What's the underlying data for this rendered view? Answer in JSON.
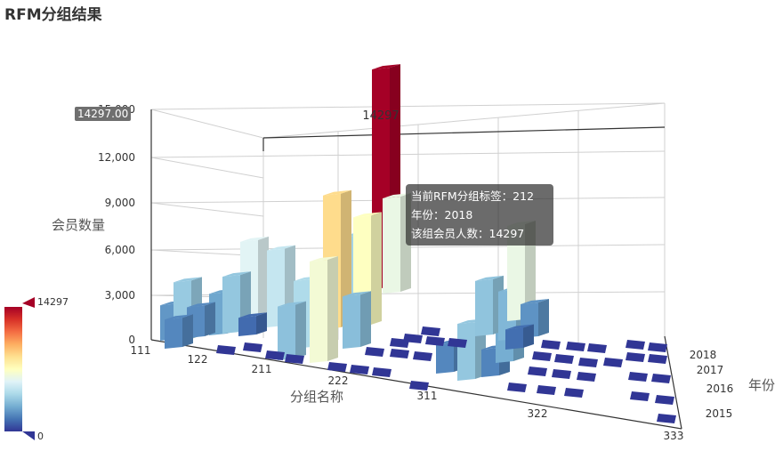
{
  "title": "RFM分组结果",
  "tooltip": {
    "line1": "当前RFM分组标签：212",
    "line2": "年份：2018",
    "line3": "该组会员人数：14297"
  },
  "axis_pointer_value": "14297.00",
  "top_label": "14297",
  "visual_map": {
    "max_label": "14297",
    "min_label": "0",
    "colors": [
      "#313695",
      "#4575b4",
      "#74add1",
      "#abd9e9",
      "#e0f3f8",
      "#ffffbf",
      "#fee090",
      "#fdae61",
      "#f46d43",
      "#d73027",
      "#a50026"
    ]
  },
  "chart_data": {
    "type": "bar3d",
    "title": "RFM分组结果",
    "xlabel": "分组名称",
    "ylabel": "年份",
    "zlabel": "会员数量",
    "x_ticks": [
      "111",
      "122",
      "211",
      "222",
      "311",
      "322",
      "333"
    ],
    "y_ticks": [
      "2015",
      "2016",
      "2017",
      "2018"
    ],
    "z_ticks": [
      "0",
      "3,000",
      "6,000",
      "9,000",
      "12,000",
      "15,000"
    ],
    "zlim": [
      0,
      15000
    ],
    "bars": [
      {
        "group": "111",
        "year": "2018",
        "value": 2300
      },
      {
        "group": "112",
        "year": "2018",
        "value": 3800
      },
      {
        "group": "121",
        "year": "2018",
        "value": 2700
      },
      {
        "group": "122",
        "year": "2018",
        "value": 5800
      },
      {
        "group": "122",
        "year": "2017",
        "value": 3700
      },
      {
        "group": "122",
        "year": "2016",
        "value": 2000
      },
      {
        "group": "112",
        "year": "2016",
        "value": 1900
      },
      {
        "group": "211",
        "year": "2018",
        "value": 5000
      },
      {
        "group": "212",
        "year": "2018",
        "value": 14297
      },
      {
        "group": "211",
        "year": "2016",
        "value": 1200
      },
      {
        "group": "212",
        "year": "2017",
        "value": 4100
      },
      {
        "group": "212",
        "year": "2016",
        "value": 6200
      },
      {
        "group": "221",
        "year": "2018",
        "value": 8700
      },
      {
        "group": "222",
        "year": "2018",
        "value": 7100
      },
      {
        "group": "221",
        "year": "2017",
        "value": 4400
      },
      {
        "group": "222",
        "year": "2017",
        "value": 3400
      },
      {
        "group": "221",
        "year": "2015",
        "value": 6600
      },
      {
        "group": "222",
        "year": "2015",
        "value": 3500
      },
      {
        "group": "311",
        "year": "2015",
        "value": 1900
      },
      {
        "group": "312",
        "year": "2015",
        "value": 3700
      },
      {
        "group": "321",
        "year": "2015",
        "value": 1800
      },
      {
        "group": "322",
        "year": "2016",
        "value": 2900
      },
      {
        "group": "312",
        "year": "2017",
        "value": 3600
      },
      {
        "group": "321",
        "year": "2017",
        "value": 3200
      },
      {
        "group": "322",
        "year": "2018",
        "value": 6200
      },
      {
        "group": "323",
        "year": "2017",
        "value": 2200
      },
      {
        "group": "322",
        "year": "2017",
        "value": 1300
      }
    ]
  }
}
